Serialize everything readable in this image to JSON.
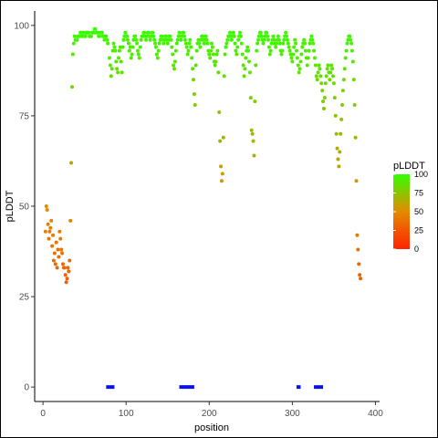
{
  "chart_data": {
    "type": "scatter",
    "title": "",
    "xlabel": "position",
    "ylabel": "pLDDT",
    "xlim": [
      -10,
      405
    ],
    "ylim": [
      -4,
      104
    ],
    "x_ticks": [
      0,
      100,
      200,
      300,
      400
    ],
    "y_ticks": [
      0,
      25,
      50,
      75,
      100
    ],
    "grid": false,
    "legend": {
      "title": "pLDDT",
      "placement": "right",
      "labels": [
        0,
        25,
        50,
        75,
        100
      ],
      "colors": {
        "low": "#ff2200",
        "mid": "#e38a00",
        "high": "#33ff00"
      }
    },
    "point_color": "gradient by pLDDT (0 = #ff2200, 50 = #e38a00, 100 = #33ff00)",
    "points": [
      [
        3,
        43
      ],
      [
        4,
        50
      ],
      [
        5,
        49
      ],
      [
        6,
        45
      ],
      [
        7,
        41
      ],
      [
        8,
        43
      ],
      [
        9,
        44
      ],
      [
        10,
        46
      ],
      [
        11,
        39
      ],
      [
        12,
        42
      ],
      [
        13,
        35
      ],
      [
        14,
        37
      ],
      [
        15,
        34
      ],
      [
        16,
        40
      ],
      [
        17,
        33
      ],
      [
        18,
        38
      ],
      [
        19,
        36
      ],
      [
        20,
        43
      ],
      [
        21,
        41
      ],
      [
        22,
        38
      ],
      [
        23,
        37
      ],
      [
        24,
        34
      ],
      [
        25,
        33
      ],
      [
        26,
        33
      ],
      [
        27,
        31
      ],
      [
        28,
        29
      ],
      [
        29,
        30
      ],
      [
        30,
        33
      ],
      [
        31,
        32
      ],
      [
        32,
        35
      ],
      [
        33,
        46
      ],
      [
        34,
        62
      ],
      [
        35,
        83
      ],
      [
        36,
        92
      ],
      [
        37,
        95
      ],
      [
        38,
        97
      ],
      [
        39,
        96
      ],
      [
        40,
        96
      ],
      [
        41,
        96
      ],
      [
        42,
        97
      ],
      [
        43,
        97
      ],
      [
        44,
        97
      ],
      [
        45,
        98
      ],
      [
        46,
        98
      ],
      [
        47,
        97
      ],
      [
        48,
        98
      ],
      [
        49,
        98
      ],
      [
        50,
        97
      ],
      [
        51,
        97
      ],
      [
        52,
        98
      ],
      [
        53,
        98
      ],
      [
        54,
        98
      ],
      [
        55,
        98
      ],
      [
        56,
        97
      ],
      [
        57,
        97
      ],
      [
        58,
        97
      ],
      [
        59,
        98
      ],
      [
        60,
        98
      ],
      [
        61,
        98
      ],
      [
        62,
        99
      ],
      [
        63,
        99
      ],
      [
        64,
        98
      ],
      [
        65,
        98
      ],
      [
        66,
        98
      ],
      [
        67,
        97
      ],
      [
        68,
        97
      ],
      [
        69,
        98
      ],
      [
        70,
        98
      ],
      [
        71,
        98
      ],
      [
        72,
        97
      ],
      [
        73,
        97
      ],
      [
        74,
        96
      ],
      [
        75,
        97
      ],
      [
        76,
        97
      ],
      [
        77,
        96
      ],
      [
        78,
        95
      ],
      [
        80,
        91
      ],
      [
        81,
        89
      ],
      [
        82,
        86
      ],
      [
        83,
        88
      ],
      [
        84,
        93
      ],
      [
        85,
        95
      ],
      [
        86,
        94
      ],
      [
        87,
        93
      ],
      [
        88,
        90
      ],
      [
        89,
        88
      ],
      [
        90,
        87
      ],
      [
        91,
        91
      ],
      [
        92,
        93
      ],
      [
        93,
        94
      ],
      [
        94,
        90
      ],
      [
        95,
        87
      ],
      [
        96,
        94
      ],
      [
        97,
        96
      ],
      [
        98,
        97
      ],
      [
        99,
        98
      ],
      [
        100,
        97
      ],
      [
        101,
        97
      ],
      [
        102,
        96
      ],
      [
        103,
        95
      ],
      [
        104,
        93
      ],
      [
        105,
        94
      ],
      [
        106,
        91
      ],
      [
        107,
        92
      ],
      [
        108,
        94
      ],
      [
        109,
        96
      ],
      [
        110,
        97
      ],
      [
        111,
        97
      ],
      [
        112,
        96
      ],
      [
        113,
        95
      ],
      [
        114,
        93
      ],
      [
        115,
        92
      ],
      [
        116,
        91
      ],
      [
        117,
        94
      ],
      [
        118,
        96
      ],
      [
        119,
        97
      ],
      [
        120,
        97
      ],
      [
        121,
        98
      ],
      [
        122,
        98
      ],
      [
        123,
        97
      ],
      [
        124,
        96
      ],
      [
        125,
        97
      ],
      [
        126,
        98
      ],
      [
        127,
        98
      ],
      [
        128,
        97
      ],
      [
        129,
        96
      ],
      [
        130,
        97
      ],
      [
        131,
        98
      ],
      [
        132,
        98
      ],
      [
        133,
        97
      ],
      [
        134,
        96
      ],
      [
        135,
        95
      ],
      [
        136,
        94
      ],
      [
        137,
        92
      ],
      [
        138,
        91
      ],
      [
        139,
        93
      ],
      [
        140,
        95
      ],
      [
        141,
        96
      ],
      [
        142,
        97
      ],
      [
        143,
        97
      ],
      [
        144,
        96
      ],
      [
        145,
        95
      ],
      [
        146,
        96
      ],
      [
        147,
        97
      ],
      [
        148,
        97
      ],
      [
        149,
        96
      ],
      [
        150,
        95
      ],
      [
        151,
        96
      ],
      [
        152,
        97
      ],
      [
        153,
        97
      ],
      [
        154,
        96
      ],
      [
        155,
        94
      ],
      [
        156,
        92
      ],
      [
        157,
        89
      ],
      [
        158,
        88
      ],
      [
        159,
        90
      ],
      [
        160,
        93
      ],
      [
        161,
        95
      ],
      [
        162,
        96
      ],
      [
        163,
        97
      ],
      [
        164,
        98
      ],
      [
        165,
        97
      ],
      [
        166,
        96
      ],
      [
        167,
        97
      ],
      [
        168,
        98
      ],
      [
        169,
        98
      ],
      [
        170,
        97
      ],
      [
        171,
        96
      ],
      [
        172,
        95
      ],
      [
        173,
        94
      ],
      [
        174,
        92
      ],
      [
        175,
        93
      ],
      [
        176,
        95
      ],
      [
        177,
        96
      ],
      [
        178,
        94
      ],
      [
        179,
        91
      ],
      [
        180,
        88
      ],
      [
        181,
        85
      ],
      [
        182,
        81
      ],
      [
        183,
        78
      ],
      [
        184,
        89
      ],
      [
        185,
        93
      ],
      [
        186,
        95
      ],
      [
        187,
        96
      ],
      [
        188,
        95
      ],
      [
        189,
        94
      ],
      [
        190,
        96
      ],
      [
        191,
        97
      ],
      [
        192,
        97
      ],
      [
        193,
        96
      ],
      [
        194,
        95
      ],
      [
        195,
        96
      ],
      [
        196,
        97
      ],
      [
        197,
        96
      ],
      [
        198,
        95
      ],
      [
        199,
        93
      ],
      [
        200,
        92
      ],
      [
        201,
        91
      ],
      [
        202,
        93
      ],
      [
        203,
        95
      ],
      [
        204,
        94
      ],
      [
        205,
        92
      ],
      [
        206,
        90
      ],
      [
        207,
        89
      ],
      [
        208,
        90
      ],
      [
        209,
        92
      ],
      [
        210,
        93
      ],
      [
        211,
        87
      ],
      [
        212,
        76
      ],
      [
        213,
        68
      ],
      [
        214,
        61
      ],
      [
        215,
        57
      ],
      [
        216,
        59
      ],
      [
        217,
        69
      ],
      [
        218,
        86
      ],
      [
        219,
        92
      ],
      [
        220,
        94
      ],
      [
        221,
        95
      ],
      [
        222,
        96
      ],
      [
        223,
        97
      ],
      [
        224,
        97
      ],
      [
        225,
        98
      ],
      [
        226,
        97
      ],
      [
        227,
        96
      ],
      [
        228,
        97
      ],
      [
        229,
        98
      ],
      [
        230,
        97
      ],
      [
        231,
        95
      ],
      [
        232,
        93
      ],
      [
        233,
        92
      ],
      [
        234,
        94
      ],
      [
        235,
        96
      ],
      [
        236,
        97
      ],
      [
        237,
        98
      ],
      [
        238,
        97
      ],
      [
        239,
        95
      ],
      [
        240,
        92
      ],
      [
        241,
        89
      ],
      [
        242,
        86
      ],
      [
        243,
        88
      ],
      [
        244,
        91
      ],
      [
        245,
        93
      ],
      [
        246,
        94
      ],
      [
        247,
        93
      ],
      [
        248,
        90
      ],
      [
        249,
        87
      ],
      [
        250,
        80
      ],
      [
        251,
        71
      ],
      [
        252,
        70
      ],
      [
        253,
        68
      ],
      [
        254,
        64
      ],
      [
        255,
        79
      ],
      [
        256,
        89
      ],
      [
        257,
        93
      ],
      [
        258,
        95
      ],
      [
        259,
        96
      ],
      [
        260,
        97
      ],
      [
        261,
        98
      ],
      [
        262,
        98
      ],
      [
        263,
        97
      ],
      [
        264,
        96
      ],
      [
        265,
        95
      ],
      [
        266,
        96
      ],
      [
        267,
        97
      ],
      [
        268,
        98
      ],
      [
        269,
        98
      ],
      [
        270,
        97
      ],
      [
        271,
        96
      ],
      [
        272,
        94
      ],
      [
        273,
        92
      ],
      [
        274,
        93
      ],
      [
        275,
        95
      ],
      [
        276,
        96
      ],
      [
        277,
        97
      ],
      [
        278,
        96
      ],
      [
        279,
        95
      ],
      [
        280,
        94
      ],
      [
        281,
        95
      ],
      [
        282,
        96
      ],
      [
        283,
        97
      ],
      [
        284,
        96
      ],
      [
        285,
        95
      ],
      [
        286,
        93
      ],
      [
        287,
        92
      ],
      [
        288,
        93
      ],
      [
        289,
        95
      ],
      [
        290,
        96
      ],
      [
        291,
        97
      ],
      [
        292,
        98
      ],
      [
        293,
        97
      ],
      [
        294,
        96
      ],
      [
        295,
        95
      ],
      [
        296,
        94
      ],
      [
        297,
        93
      ],
      [
        298,
        92
      ],
      [
        299,
        91
      ],
      [
        300,
        90
      ],
      [
        301,
        92
      ],
      [
        302,
        94
      ],
      [
        303,
        96
      ],
      [
        304,
        95
      ],
      [
        305,
        93
      ],
      [
        306,
        91
      ],
      [
        307,
        89
      ],
      [
        308,
        87
      ],
      [
        309,
        88
      ],
      [
        310,
        90
      ],
      [
        311,
        92
      ],
      [
        312,
        94
      ],
      [
        313,
        95
      ],
      [
        314,
        96
      ],
      [
        315,
        95
      ],
      [
        316,
        93
      ],
      [
        317,
        91
      ],
      [
        318,
        89
      ],
      [
        319,
        91
      ],
      [
        320,
        93
      ],
      [
        321,
        95
      ],
      [
        322,
        96
      ],
      [
        323,
        97
      ],
      [
        324,
        96
      ],
      [
        325,
        95
      ],
      [
        326,
        93
      ],
      [
        327,
        91
      ],
      [
        328,
        89
      ],
      [
        329,
        86
      ],
      [
        330,
        85
      ],
      [
        331,
        87
      ],
      [
        332,
        89
      ],
      [
        333,
        88
      ],
      [
        334,
        86
      ],
      [
        335,
        84
      ],
      [
        336,
        82
      ],
      [
        337,
        79
      ],
      [
        338,
        77
      ],
      [
        339,
        80
      ],
      [
        340,
        84
      ],
      [
        341,
        86
      ],
      [
        342,
        88
      ],
      [
        343,
        89
      ],
      [
        344,
        87
      ],
      [
        345,
        85
      ],
      [
        346,
        87
      ],
      [
        347,
        89
      ],
      [
        348,
        88
      ],
      [
        349,
        86
      ],
      [
        350,
        84
      ],
      [
        351,
        80
      ],
      [
        352,
        75
      ],
      [
        353,
        70
      ],
      [
        354,
        66
      ],
      [
        355,
        63
      ],
      [
        356,
        61
      ],
      [
        357,
        65
      ],
      [
        358,
        70
      ],
      [
        359,
        74
      ],
      [
        360,
        78
      ],
      [
        361,
        82
      ],
      [
        362,
        85
      ],
      [
        363,
        88
      ],
      [
        364,
        91
      ],
      [
        365,
        93
      ],
      [
        366,
        95
      ],
      [
        367,
        96
      ],
      [
        368,
        97
      ],
      [
        369,
        97
      ],
      [
        370,
        96
      ],
      [
        371,
        95
      ],
      [
        372,
        93
      ],
      [
        373,
        90
      ],
      [
        374,
        85
      ],
      [
        375,
        78
      ],
      [
        376,
        69
      ],
      [
        377,
        57
      ],
      [
        378,
        42
      ],
      [
        379,
        38
      ],
      [
        380,
        34
      ],
      [
        381,
        31
      ],
      [
        382,
        30
      ]
    ],
    "segments": [
      [
        76,
        86
      ],
      [
        164,
        182
      ],
      [
        305,
        310
      ],
      [
        326,
        337
      ]
    ],
    "segment_y": 0,
    "segment_color": "#0a14e0"
  }
}
